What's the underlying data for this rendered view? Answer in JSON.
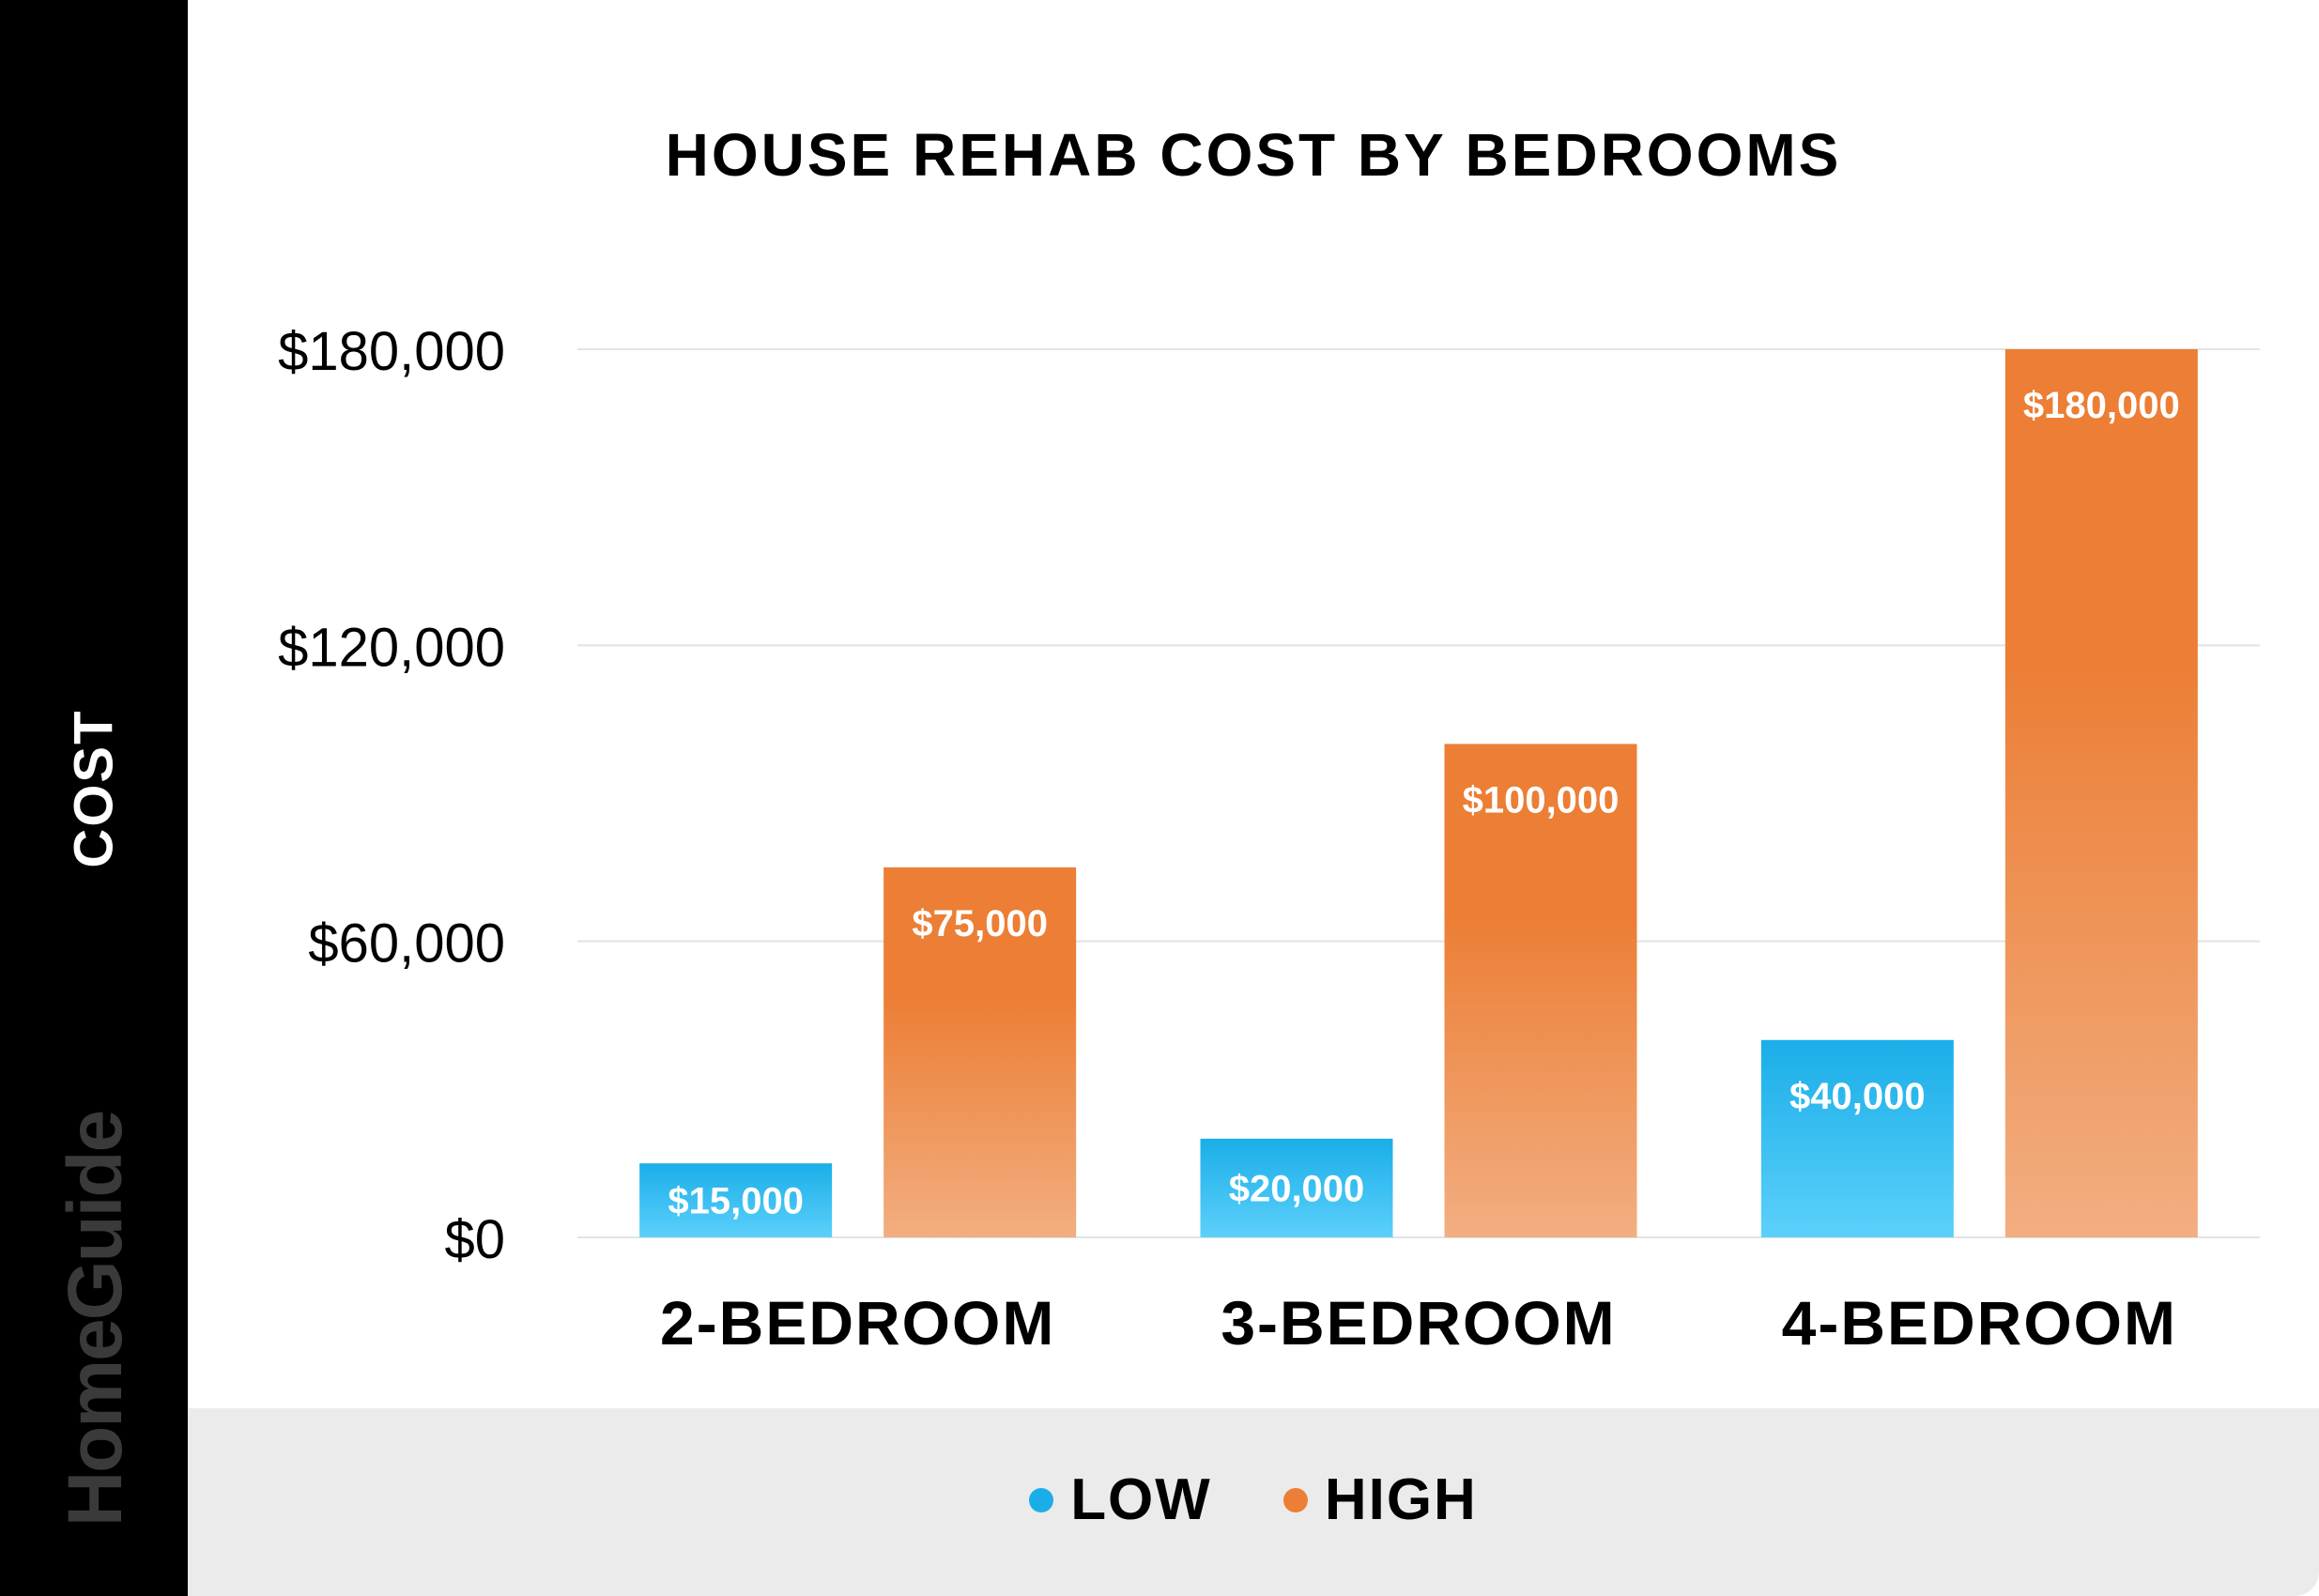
{
  "brand": "HomeGuide",
  "colors": {
    "low": "#1aaee8",
    "low_light": "#5cd0fb",
    "high": "#ec7e35",
    "high_light": "#f2ae81",
    "grid": "#e3e3e3",
    "sidebar": "#000000",
    "legend_band": "#ebebeb"
  },
  "chart_data": {
    "type": "bar",
    "title": "HOUSE REHAB COST BY BEDROOMS",
    "xlabel": "",
    "ylabel": "COST",
    "categories": [
      "2-BEDROOM",
      "3-BEDROOM",
      "4-BEDROOM"
    ],
    "series": [
      {
        "name": "LOW",
        "values": [
          15000,
          20000,
          40000
        ],
        "labels": [
          "$15,000",
          "$20,000",
          "$40,000"
        ]
      },
      {
        "name": "HIGH",
        "values": [
          75000,
          100000,
          180000
        ],
        "labels": [
          "$75,000",
          "$100,000",
          "$180,000"
        ]
      }
    ],
    "ylim": [
      0,
      180000
    ],
    "yticks": [
      0,
      60000,
      120000,
      180000
    ],
    "ytick_labels": [
      "$0",
      "$60,000",
      "$120,000",
      "$180,000"
    ],
    "grid": true,
    "legend": "bottom"
  }
}
